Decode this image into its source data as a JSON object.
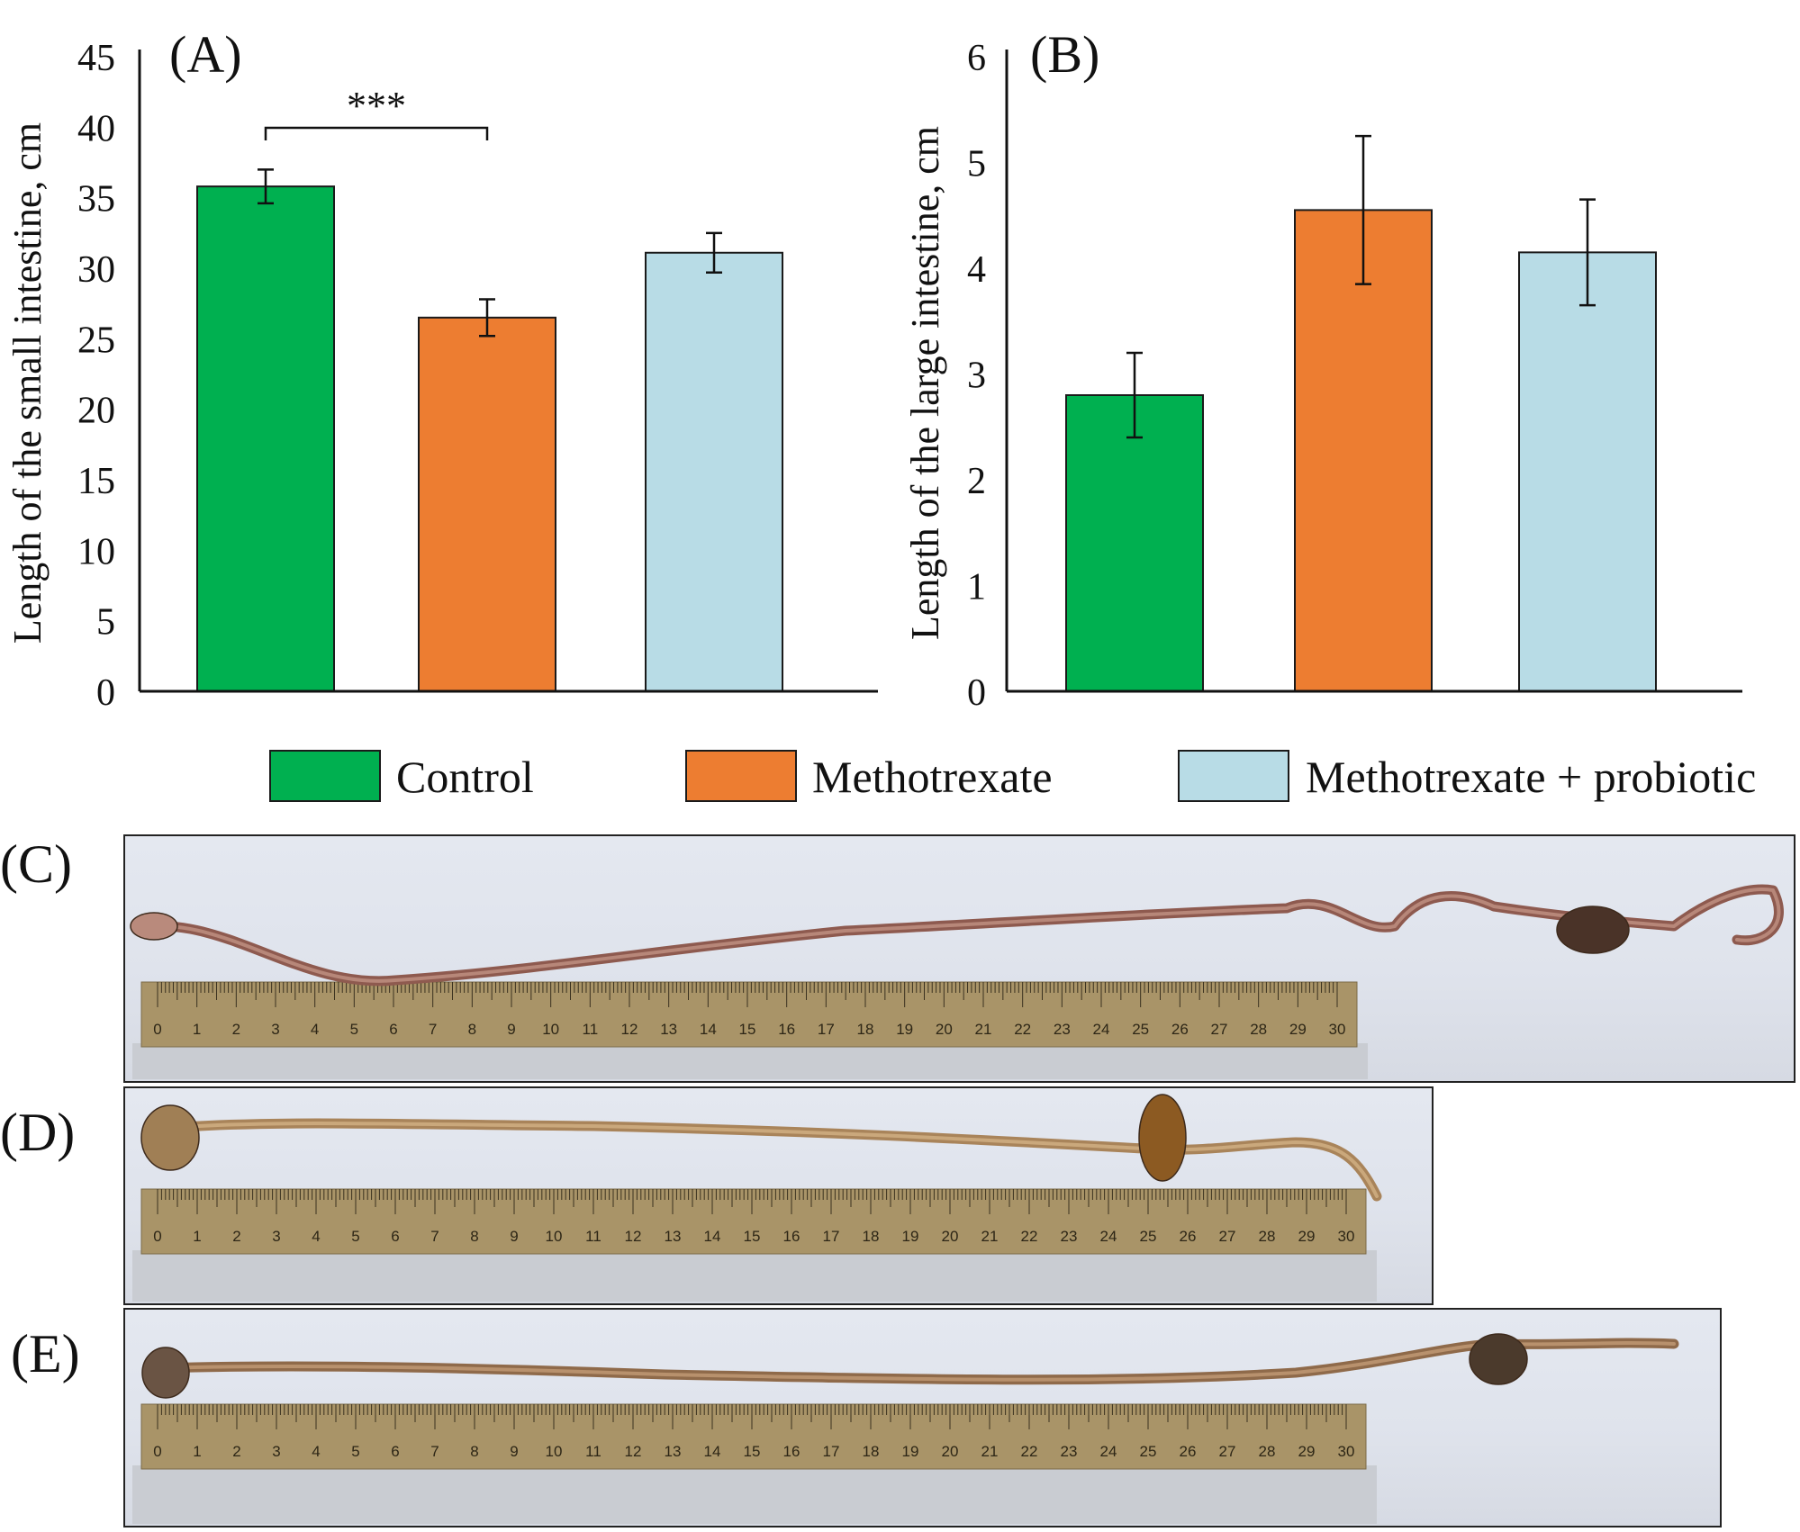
{
  "chart_data": [
    {
      "type": "bar",
      "panel": "(A)",
      "ylabel": "Length of the small intestine, cm",
      "ylim": [
        0,
        45
      ],
      "yticks": [
        "0",
        "5",
        "10",
        "15",
        "20",
        "25",
        "30",
        "35",
        "40",
        "45"
      ],
      "categories": [
        "Control",
        "Methotrexate",
        "Methotrexate + probiotic"
      ],
      "values": [
        35.8,
        26.5,
        31.1
      ],
      "errors": [
        1.2,
        1.3,
        1.4
      ],
      "significance": {
        "between": [
          0,
          1
        ],
        "label": "***"
      }
    },
    {
      "type": "bar",
      "panel": "(B)",
      "ylabel": "Length of the large intestine, cm",
      "ylim": [
        0,
        6
      ],
      "yticks": [
        "0",
        "1",
        "2",
        "3",
        "4",
        "5",
        "6"
      ],
      "categories": [
        "Control",
        "Methotrexate",
        "Methotrexate + probiotic"
      ],
      "values": [
        2.8,
        4.55,
        4.15
      ],
      "errors": [
        0.4,
        0.7,
        0.5
      ]
    }
  ],
  "legend": [
    {
      "label": "Control",
      "color": "#00b050"
    },
    {
      "label": "Methotrexate",
      "color": "#ed7d31"
    },
    {
      "label": "Methotrexate + probiotic",
      "color": "#b8dce6"
    }
  ],
  "colors": {
    "control": "#00b050",
    "methotrexate": "#ed7d31",
    "probiotic": "#b8dce6"
  },
  "photos": {
    "c": {
      "label": "(C)"
    },
    "d": {
      "label": "(D)"
    },
    "e": {
      "label": "(E)"
    },
    "ruler_numbers": [
      "0",
      "1",
      "2",
      "3",
      "4",
      "5",
      "6",
      "7",
      "8",
      "9",
      "10",
      "11",
      "12",
      "13",
      "14",
      "15",
      "16",
      "17",
      "18",
      "19",
      "20",
      "21",
      "22",
      "23",
      "24",
      "25",
      "26",
      "27",
      "28",
      "29",
      "30"
    ]
  }
}
